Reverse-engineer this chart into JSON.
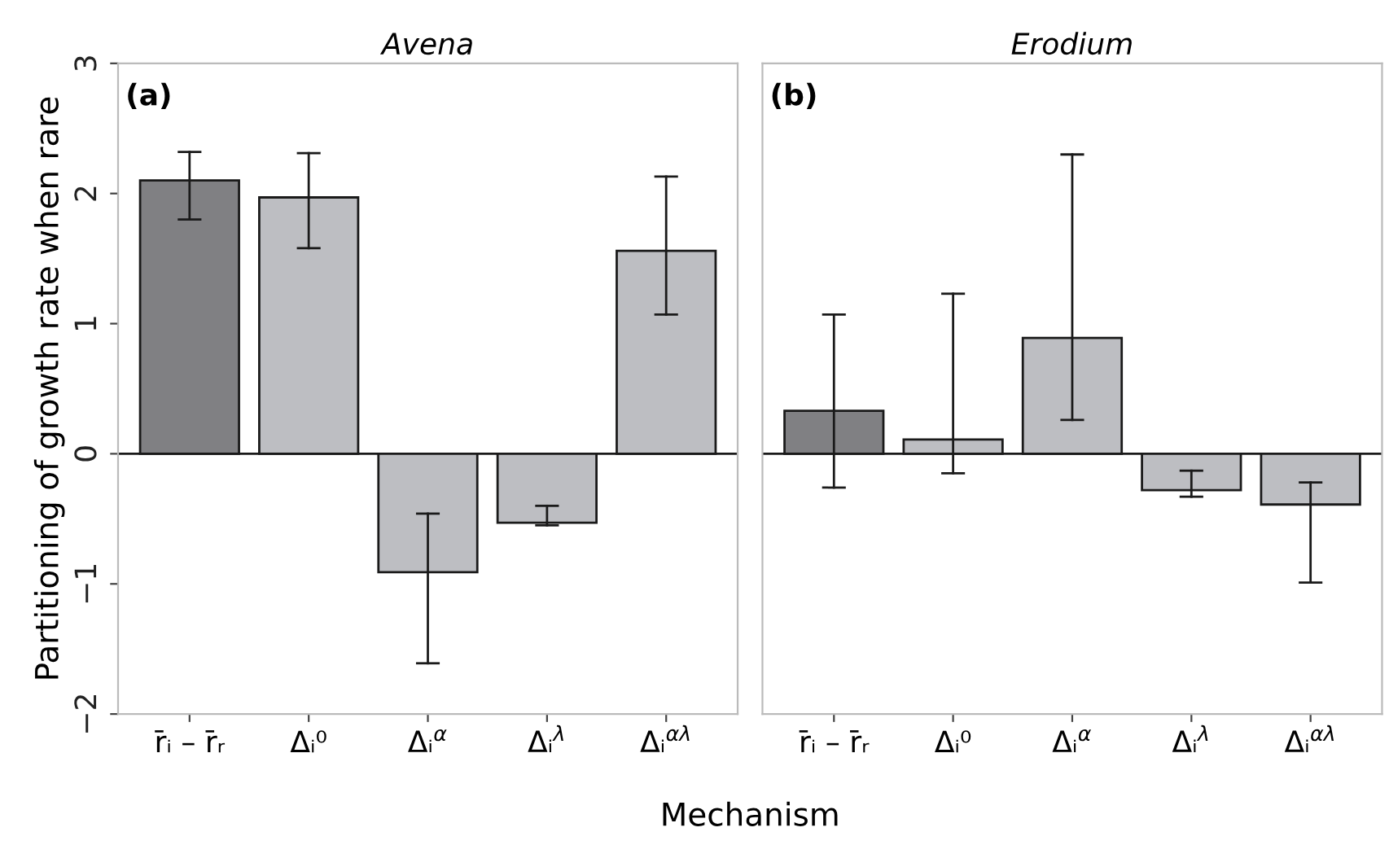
{
  "chart_data": [
    {
      "type": "bar",
      "title": "Avena",
      "ylabel": "Partitioning of growth rate when rare",
      "xlabel": "Mechanism",
      "annotations": [
        "(a)"
      ],
      "categories": [
        "r̄ᵢ – r̄ᵣ",
        "Δᵢ⁰",
        "Δᵢ$^{α}$",
        "Δᵢ$^{λ}$",
        "Δᵢ$^{αλ}$"
      ],
      "values": [
        2.1,
        1.97,
        -0.91,
        -0.53,
        1.56
      ],
      "colors": [
        "#808083",
        "#bdbec2",
        "#bdbec2",
        "#bdbec2",
        "#bdbec2"
      ],
      "errors": [
        [
          1.8,
          2.32
        ],
        [
          1.58,
          2.31
        ],
        [
          -1.61,
          -0.46
        ],
        [
          -0.55,
          -0.4
        ],
        [
          1.07,
          2.13
        ]
      ],
      "ylim": [
        -2,
        3
      ],
      "yticks": [
        -2,
        -1,
        0,
        1,
        2,
        3
      ],
      "ref_lines": [
        {
          "axis": "y",
          "value": 0
        }
      ],
      "grid": false
    },
    {
      "type": "bar",
      "title": "Erodium",
      "annotations": [
        "(b)"
      ],
      "categories": [
        "r̄ᵢ – r̄ᵣ",
        "Δᵢ⁰",
        "Δᵢ$^{α}$",
        "Δᵢ$^{λ}$",
        "Δᵢ$^{αλ}$"
      ],
      "values": [
        0.33,
        0.11,
        0.89,
        -0.28,
        -0.39
      ],
      "colors": [
        "#808083",
        "#bdbec2",
        "#bdbec2",
        "#bdbec2",
        "#bdbec2"
      ],
      "errors": [
        [
          -0.26,
          1.07
        ],
        [
          -0.15,
          1.23
        ],
        [
          0.26,
          2.3
        ],
        [
          -0.33,
          -0.13
        ],
        [
          -0.99,
          -0.22
        ]
      ],
      "ylim": [
        -2,
        3
      ],
      "yticks": [
        -2,
        -1,
        0,
        1,
        2,
        3
      ],
      "tick_labels": "x",
      "ref_lines": [
        {
          "axis": "y",
          "value": 0
        }
      ],
      "grid": false
    }
  ]
}
